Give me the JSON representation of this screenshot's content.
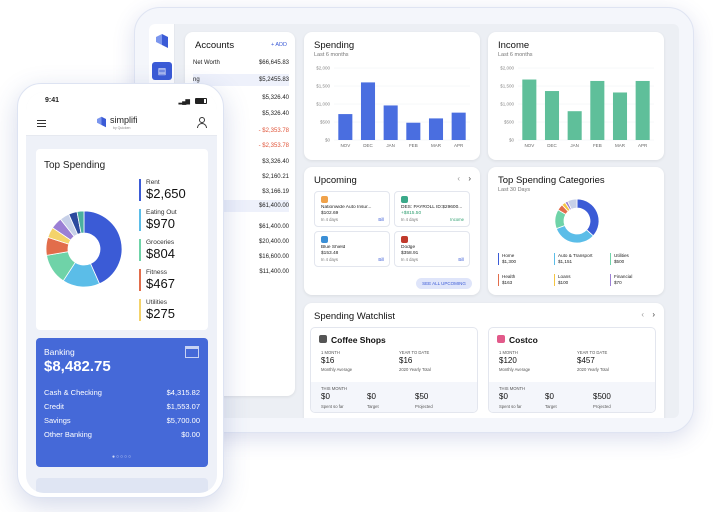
{
  "tablet": {
    "accounts": {
      "title": "Accounts",
      "add_label": "+ ADD",
      "rows": [
        {
          "label": "Net Worth",
          "value": "$66,645.83"
        },
        {
          "label": "ng",
          "value": "$5,2455.83"
        },
        {
          "label": "",
          "value": "$5,326.40"
        },
        {
          "label": "ecking 1",
          "value": "$5,326.40"
        },
        {
          "label": "",
          "value": "- $2,353.78"
        },
        {
          "label": "",
          "value": "- $2,353.78"
        },
        {
          "label": "",
          "value": "$3,326.40"
        },
        {
          "label": "s 1",
          "value": "$2,160.21"
        },
        {
          "label": "",
          "value": "$3,166.19"
        },
        {
          "label": "ents",
          "value": "$61,400.00"
        },
        {
          "label": "",
          "value": "$61,400.00"
        },
        {
          "label": "",
          "value": "$20,400.00"
        },
        {
          "label": "",
          "value": "$16,600.00"
        },
        {
          "label": "",
          "value": "$11,400.00"
        }
      ]
    },
    "spending": {
      "title": "Spending",
      "subtitle": "Last 6 months"
    },
    "income": {
      "title": "Income",
      "subtitle": "Last 6 months"
    },
    "upcoming": {
      "title": "Upcoming",
      "items": [
        {
          "name": "Nationwide Auto Insur...",
          "amount": "$102.69",
          "date": "In 4 days",
          "tag": "Bill",
          "color": "#f0a24a"
        },
        {
          "name": "DES: PAYROLL ID:$29600...",
          "amount": "+$815.50",
          "date": "In 4 days",
          "tag": "Income",
          "color": "#3aa98a"
        },
        {
          "name": "Blue Shield",
          "amount": "$153.48",
          "date": "In 4 days",
          "tag": "Bill",
          "color": "#3b8fd6"
        },
        {
          "name": "Dodge",
          "amount": "$358.91",
          "date": "In 4 days",
          "tag": "Bill",
          "color": "#c0392b"
        }
      ],
      "see_all_label": "SEE ALL UPCOMING"
    },
    "top_categories": {
      "title": "Top Spending Categories",
      "subtitle": "Last 30 Days",
      "legend": [
        {
          "name": "Home",
          "value": "$1,300",
          "color": "#3b5bd6"
        },
        {
          "name": "Auto & Transport",
          "value": "$1,151",
          "color": "#5bbde8"
        },
        {
          "name": "Utilities",
          "value": "$500",
          "color": "#6fd3a8"
        },
        {
          "name": "Health",
          "value": "$163",
          "color": "#e26d4b"
        },
        {
          "name": "Loans",
          "value": "$100",
          "color": "#f4c542"
        },
        {
          "name": "Financial",
          "value": "$70",
          "color": "#9b7fd4"
        }
      ]
    },
    "watchlist": {
      "title": "Spending Watchlist",
      "cards": [
        {
          "title": "Coffee Shops",
          "icon": "coffee-icon",
          "month_label": "1 MONTH",
          "month_value": "$16",
          "month_sub": "Monthly Average",
          "ytd_label": "YEAR TO DATE",
          "ytd_value": "$16",
          "ytd_sub": "2020 Yearly Total",
          "this_month": "THIS MONTH",
          "spent": "$0",
          "spent_label": "Spent so far",
          "target": "$0",
          "target_label": "Target",
          "projected": "$50",
          "projected_label": "Projected"
        },
        {
          "title": "Costco",
          "icon": "store-icon",
          "month_label": "1 MONTH",
          "month_value": "$120",
          "month_sub": "Monthly Average",
          "ytd_label": "YEAR TO DATE",
          "ytd_value": "$457",
          "ytd_sub": "2020 Yearly Total",
          "this_month": "THIS MONTH",
          "spent": "$0",
          "spent_label": "Spent so far",
          "target": "$0",
          "target_label": "Target",
          "projected": "$500",
          "projected_label": "Projected"
        }
      ]
    }
  },
  "phone": {
    "time": "9:41",
    "brand": "simplifi",
    "brand_sub": "by Quicken",
    "top_spending_title": "Top Spending",
    "categories": [
      {
        "label": "Rent",
        "amount": "$2,650",
        "color": "#3b5bd6"
      },
      {
        "label": "Eating Out",
        "amount": "$970",
        "color": "#5bbde8"
      },
      {
        "label": "Groceries",
        "amount": "$804",
        "color": "#6fd3a8"
      },
      {
        "label": "Fitness",
        "amount": "$467",
        "color": "#e26d4b"
      },
      {
        "label": "Utilities",
        "amount": "$275",
        "color": "#f4d36b"
      }
    ],
    "banking": {
      "title": "Banking",
      "total": "$8,482.75",
      "rows": [
        {
          "label": "Cash & Checking",
          "value": "$4,315.82"
        },
        {
          "label": "Credit",
          "value": "$1,553.07"
        },
        {
          "label": "Savings",
          "value": "$5,700.00"
        },
        {
          "label": "Other Banking",
          "value": "$0.00"
        }
      ]
    }
  },
  "chart_data": [
    {
      "type": "bar",
      "title": "Spending",
      "subtitle": "Last 6 months",
      "categories": [
        "NOV",
        "DEC",
        "JAN",
        "FEB",
        "MAR",
        "APR"
      ],
      "values": [
        900,
        2000,
        1200,
        600,
        750,
        950
      ],
      "yticks": [
        "$2,000",
        "$1,500",
        "$1,000",
        "$500",
        "$0"
      ],
      "ylim": [
        0,
        2500
      ],
      "color": "#4a6ee0"
    },
    {
      "type": "bar",
      "title": "Income",
      "subtitle": "Last 6 months",
      "categories": [
        "NOV",
        "DEC",
        "JAN",
        "FEB",
        "MAR",
        "APR"
      ],
      "values": [
        2100,
        1700,
        1000,
        2050,
        1650,
        2050
      ],
      "yticks": [
        "$2,000",
        "$1,500",
        "$1,000",
        "$500",
        "$0"
      ],
      "ylim": [
        0,
        2500
      ],
      "color": "#5fbf9a"
    }
  ]
}
